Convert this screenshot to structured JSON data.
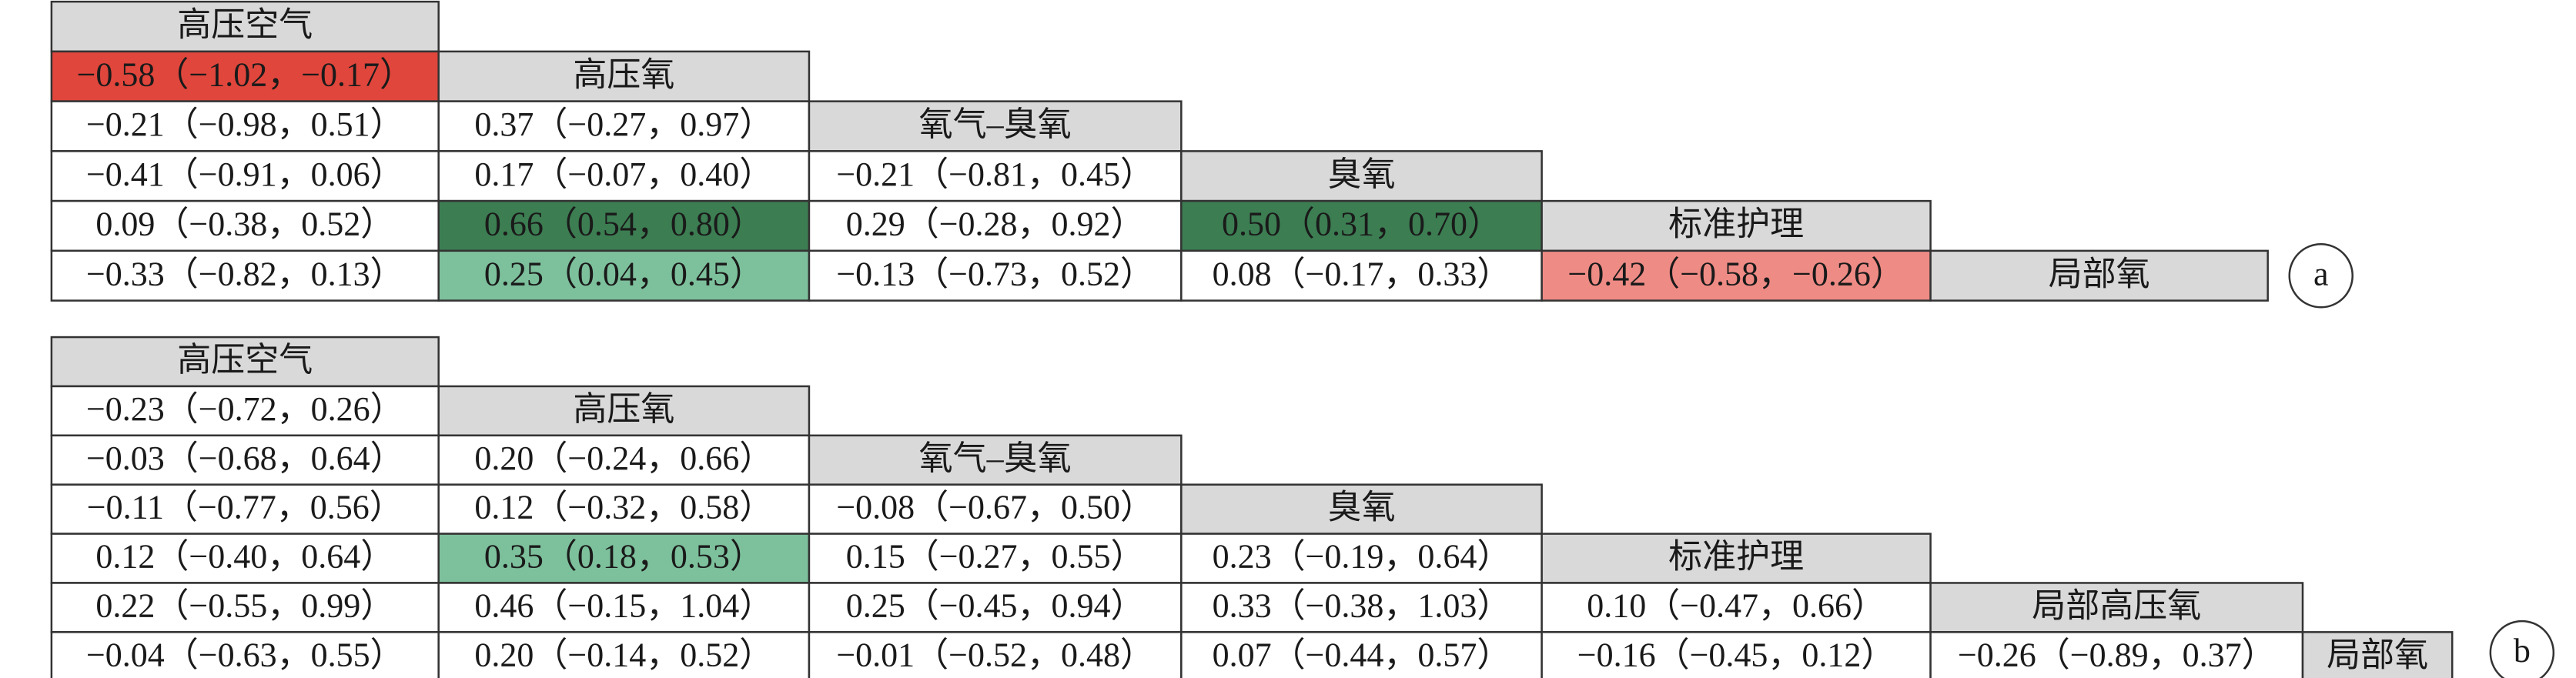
{
  "header_color": "#d9d9d9",
  "panels": [
    {
      "label": "a",
      "nodes": [
        "高压空气",
        "高压氧",
        "氧气–臭氧",
        "臭氧",
        "标准护理",
        "局部氧"
      ],
      "rows": [
        [],
        [
          {
            "text": "−0.58（−1.02，−0.17）",
            "color": "#e0463c"
          }
        ],
        [
          {
            "text": "−0.21（−0.98，0.51）"
          },
          {
            "text": "0.37（−0.27，0.97）"
          }
        ],
        [
          {
            "text": "−0.41（−0.91，0.06）"
          },
          {
            "text": "0.17（−0.07，0.40）"
          },
          {
            "text": "−0.21（−0.81，0.45）"
          }
        ],
        [
          {
            "text": "0.09（−0.38，0.52）"
          },
          {
            "text": "0.66（0.54，0.80）",
            "color": "#3c7d52"
          },
          {
            "text": "0.29（−0.28，0.92）"
          },
          {
            "text": "0.50（0.31，0.70）",
            "color": "#3c7d52"
          }
        ],
        [
          {
            "text": "−0.33（−0.82，0.13）"
          },
          {
            "text": "0.25（0.04，0.45）",
            "color": "#7dc09c"
          },
          {
            "text": "−0.13（−0.73，0.52）"
          },
          {
            "text": "0.08（−0.17，0.33）"
          },
          {
            "text": "−0.42（−0.58，−0.26）",
            "color": "#ef8b85"
          }
        ]
      ]
    },
    {
      "label": "b",
      "nodes": [
        "高压空气",
        "高压氧",
        "氧气–臭氧",
        "臭氧",
        "标准护理",
        "局部高压氧",
        "局部氧"
      ],
      "rows": [
        [],
        [
          {
            "text": "−0.23（−0.72，0.26）"
          }
        ],
        [
          {
            "text": "−0.03（−0.68，0.64）"
          },
          {
            "text": "0.20（−0.24，0.66）"
          }
        ],
        [
          {
            "text": "−0.11（−0.77，0.56）"
          },
          {
            "text": "0.12（−0.32，0.58）"
          },
          {
            "text": "−0.08（−0.67，0.50）"
          }
        ],
        [
          {
            "text": "0.12（−0.40，0.64）"
          },
          {
            "text": "0.35（0.18，0.53）",
            "color": "#7dc09c"
          },
          {
            "text": "0.15（−0.27，0.55）"
          },
          {
            "text": "0.23（−0.19，0.64）"
          }
        ],
        [
          {
            "text": "0.22（−0.55，0.99）"
          },
          {
            "text": "0.46（−0.15，1.04）"
          },
          {
            "text": "0.25（−0.45，0.94）"
          },
          {
            "text": "0.33（−0.38，1.03）"
          },
          {
            "text": "0.10（−0.47，0.66）"
          }
        ],
        [
          {
            "text": "−0.04（−0.63，0.55）"
          },
          {
            "text": "0.20（−0.14，0.52）"
          },
          {
            "text": "−0.01（−0.52，0.48）"
          },
          {
            "text": "0.07（−0.44，0.57）"
          },
          {
            "text": "−0.16（−0.45，0.12）"
          },
          {
            "text": "−0.26（−0.89，0.37）"
          }
        ]
      ]
    }
  ]
}
